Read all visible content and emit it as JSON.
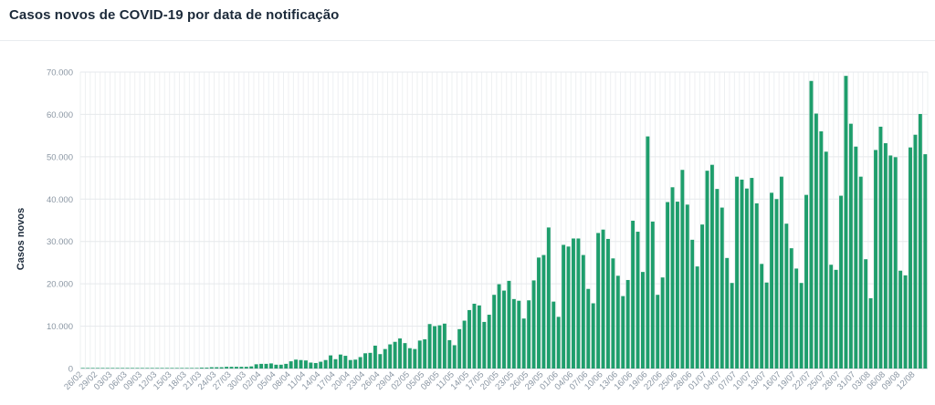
{
  "chart_data": {
    "type": "bar",
    "title": "Casos novos de COVID-19 por data de notificação",
    "xlabel": "",
    "ylabel": "Casos novos",
    "ylim": [
      0,
      70000
    ],
    "yticks": [
      0,
      10000,
      20000,
      30000,
      40000,
      50000,
      60000,
      70000
    ],
    "ytick_labels": [
      "0",
      "10.000",
      "20.000",
      "30.000",
      "40.000",
      "50.000",
      "60.000",
      "70.000"
    ],
    "grid": true,
    "legend": "none",
    "bar_color": "#1e9e6c",
    "xtick_labels": [
      "26/02",
      "29/02",
      "03/03",
      "06/03",
      "09/03",
      "12/03",
      "15/03",
      "18/03",
      "21/03",
      "24/03",
      "27/03",
      "30/03",
      "02/04",
      "05/04",
      "08/04",
      "11/04",
      "14/04",
      "17/04",
      "20/04",
      "23/04",
      "26/04",
      "29/04",
      "02/05",
      "05/05",
      "08/05",
      "11/05",
      "14/05",
      "17/05",
      "20/05",
      "23/05",
      "26/05",
      "29/05",
      "01/06",
      "04/06",
      "07/06",
      "10/06",
      "13/06",
      "16/06",
      "19/06",
      "22/06",
      "25/06",
      "28/06",
      "01/07",
      "04/07",
      "07/07",
      "10/07",
      "13/07",
      "16/07",
      "19/07",
      "22/07",
      "25/07",
      "28/07",
      "31/07",
      "03/08",
      "06/08",
      "09/08",
      "12/08"
    ],
    "values": [
      0,
      0,
      0,
      0,
      0,
      0,
      0,
      0,
      0,
      0,
      0,
      0,
      0,
      0,
      0,
      0,
      0,
      0,
      0,
      0,
      0,
      100,
      100,
      100,
      200,
      200,
      300,
      300,
      300,
      400,
      400,
      400,
      400,
      400,
      500,
      1000,
      1100,
      1100,
      1200,
      900,
      900,
      1100,
      1700,
      2100,
      2000,
      1900,
      1400,
      1300,
      1600,
      2000,
      3100,
      2200,
      3300,
      3000,
      2000,
      2100,
      2700,
      3600,
      3700,
      5400,
      3400,
      4600,
      5700,
      6300,
      7100,
      6000,
      4800,
      4600,
      6600,
      6900,
      10500,
      10000,
      10200,
      10600,
      6700,
      5500,
      9300,
      11300,
      13800,
      15300,
      14900,
      11000,
      12700,
      17400,
      19900,
      18400,
      20700,
      16400,
      16000,
      11800,
      16100,
      20800,
      26200,
      26800,
      33300,
      15800,
      12200,
      29200,
      28800,
      30700,
      30700,
      26800,
      18800,
      15400,
      32000,
      32800,
      30600,
      26000,
      21900,
      17100,
      20900,
      34900,
      32300,
      22800,
      54800,
      34700,
      17400,
      21500,
      39300,
      42800,
      39400,
      46900,
      38700,
      30400,
      24100,
      34000,
      46700,
      48100,
      42400,
      38000,
      26100,
      20200,
      45300,
      44600,
      42500,
      45000,
      39000,
      24700,
      20300,
      41500,
      40000,
      45300,
      34200,
      28400,
      23600,
      20200,
      41000,
      67900,
      60200,
      56000,
      51200,
      24500,
      23300,
      40800,
      69100,
      57800,
      52400,
      45300,
      25800,
      16600,
      51600,
      57100,
      53200,
      50300,
      49900,
      23100,
      22000,
      52200,
      55200,
      60100,
      50600
    ]
  }
}
